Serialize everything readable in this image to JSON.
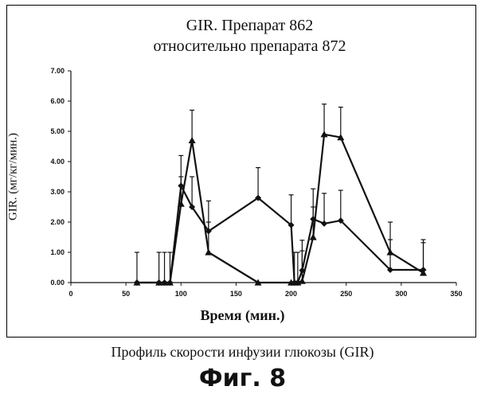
{
  "chart_data": {
    "type": "line",
    "title_line1": "GIR. Препарат 862",
    "title_line2": "относительно препарата 872",
    "xlabel": "Время (мин.)",
    "ylabel": "GIR. (мг/кг/мин.)",
    "xlim": [
      0,
      350
    ],
    "ylim": [
      0,
      7
    ],
    "x_ticks": [
      "0",
      "50",
      "100",
      "150",
      "200",
      "250",
      "300",
      "350"
    ],
    "y_ticks": [
      "0.00",
      "1.00",
      "2.00",
      "3.00",
      "4.00",
      "5.00",
      "6.00",
      "7.00"
    ],
    "grid": false,
    "series": [
      {
        "marker": "diamond",
        "color": "#111111",
        "x": [
          60,
          80,
          85,
          90,
          100,
          110,
          125,
          170,
          200,
          203,
          206,
          210,
          220,
          230,
          245,
          290,
          320
        ],
        "y": [
          0,
          0,
          0,
          0,
          3.2,
          2.5,
          1.7,
          2.8,
          1.9,
          0,
          0,
          0.4,
          2.1,
          1.95,
          2.05,
          0.42,
          0.42
        ],
        "err": [
          1.0,
          1.0,
          1.0,
          1.0,
          1.0,
          1.0,
          1.0,
          1.0,
          1.0,
          1.0,
          1.0,
          1.0,
          1.0,
          1.0,
          1.0,
          1.0,
          1.0
        ]
      },
      {
        "marker": "triangle",
        "color": "#111111",
        "x": [
          60,
          80,
          85,
          90,
          100,
          110,
          125,
          170,
          200,
          203,
          206,
          210,
          220,
          230,
          245,
          290,
          320
        ],
        "y": [
          0,
          0,
          0,
          0,
          2.6,
          4.7,
          1.0,
          0,
          0,
          0,
          0,
          0.05,
          1.5,
          4.9,
          4.8,
          1.0,
          0.32
        ],
        "err": [
          0,
          0,
          0,
          0,
          0.9,
          1.0,
          1.0,
          0,
          0,
          0,
          0,
          1.0,
          1.0,
          1.0,
          1.0,
          1.0,
          1.0
        ]
      }
    ]
  },
  "caption": "Профиль скорости инфузии глюкозы (GIR)",
  "figure_label": "Фиг. 8"
}
